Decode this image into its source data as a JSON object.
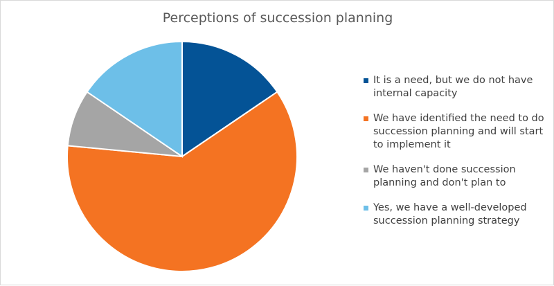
{
  "chart_data": {
    "type": "pie",
    "title": "Perceptions of succession planning",
    "legend_position": "right",
    "slices": [
      {
        "label": "It is a need, but we do not have internal capacity",
        "value": 15.5,
        "color": "#045396"
      },
      {
        "label": "We have identified the need to do succession planning and will start to implement it",
        "value": 61.0,
        "color": "#f47322"
      },
      {
        "label": "We haven't done succession planning and don't plan to",
        "value": 8.0,
        "color": "#a5a5a5"
      },
      {
        "label": "Yes, we have a well-developed succession planning strategy",
        "value": 15.5,
        "color": "#6dbfe8"
      }
    ]
  }
}
